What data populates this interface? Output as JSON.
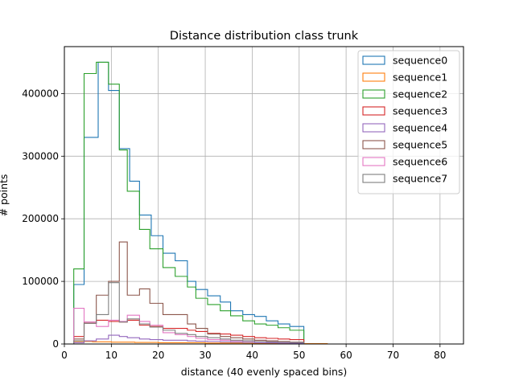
{
  "chart_data": {
    "type": "histogram-step",
    "title": "Distance distribution class trunk",
    "xlabel": "distance (40 evenly spaced bins)",
    "ylabel": "# points",
    "xlim": [
      0,
      85
    ],
    "ylim": [
      0,
      475000
    ],
    "xticks": [
      0,
      10,
      20,
      30,
      40,
      50,
      60,
      70,
      80
    ],
    "xtick_labels": [
      "0",
      "10",
      "20",
      "30",
      "40",
      "50",
      "60",
      "70",
      "80"
    ],
    "yticks": [
      0,
      100000,
      200000,
      300000,
      400000
    ],
    "ytick_labels": [
      "0",
      "100000",
      "200000",
      "300000",
      "400000"
    ],
    "grid": true,
    "legend_position": "top-right",
    "series": [
      {
        "name": "sequence0",
        "color": "#1f77b4",
        "x": [
          2.0,
          4.2,
          7.2,
          9.4,
          11.7,
          13.9,
          16.0,
          18.5,
          21.0,
          23.6,
          26.2,
          28.0,
          30.5,
          33.2,
          35.4,
          38.0,
          40.5,
          43.0,
          45.5,
          48.0,
          51.0
        ],
        "values": [
          95000,
          330000,
          450000,
          405000,
          312000,
          260000,
          206000,
          173000,
          145000,
          133000,
          100000,
          87000,
          77000,
          67000,
          53000,
          47000,
          44000,
          37000,
          32000,
          28000
        ]
      },
      {
        "name": "sequence1",
        "color": "#ff7f0e",
        "x": [
          2.0,
          6.0,
          10.0,
          15.0,
          20.0,
          30.0,
          40.0,
          50.0,
          56.0
        ],
        "values": [
          4000,
          3500,
          3000,
          2500,
          2000,
          1500,
          1000,
          500
        ]
      },
      {
        "name": "sequence2",
        "color": "#2ca02c",
        "x": [
          2.0,
          4.2,
          6.8,
          9.4,
          11.7,
          13.4,
          16.0,
          18.2,
          21.0,
          23.6,
          26.2,
          28.0,
          30.5,
          33.2,
          35.4,
          38.0,
          40.5,
          43.0,
          45.5,
          48.0,
          51.0
        ],
        "values": [
          120000,
          432000,
          450000,
          415000,
          310000,
          244000,
          183000,
          152000,
          122000,
          108000,
          91000,
          73000,
          63000,
          53000,
          45000,
          37000,
          32000,
          30000,
          26000,
          22000
        ]
      },
      {
        "name": "sequence3",
        "color": "#d62728",
        "x": [
          2.0,
          4.2,
          6.8,
          9.4,
          11.7,
          13.4,
          16.0,
          18.2,
          21.0,
          23.6,
          26.2,
          28.0,
          30.5,
          33.2,
          35.4,
          38.0,
          40.5,
          43.0,
          45.5,
          48.0,
          51.0
        ],
        "values": [
          12000,
          33000,
          38000,
          36000,
          35000,
          38000,
          30000,
          28000,
          25000,
          25000,
          22000,
          20000,
          17000,
          16000,
          14000,
          12000,
          10000,
          9000,
          8000,
          7000
        ]
      },
      {
        "name": "sequence4",
        "color": "#9467bd",
        "x": [
          2.0,
          4.2,
          6.8,
          9.4,
          11.7,
          13.4,
          16.0,
          18.2,
          21.0,
          23.6,
          26.2,
          28.0,
          30.5,
          33.2,
          35.4,
          38.0,
          40.5,
          43.0,
          45.5,
          48.0,
          51.0
        ],
        "values": [
          2000,
          5000,
          8000,
          14000,
          12000,
          10000,
          8000,
          7000,
          6000,
          6000,
          5000,
          4500,
          4000,
          3500,
          3000,
          2500,
          2000,
          1800,
          1500,
          1200
        ]
      },
      {
        "name": "sequence5",
        "color": "#8c564b",
        "x": [
          2.0,
          4.2,
          6.8,
          9.4,
          11.7,
          13.4,
          16.0,
          18.2,
          21.0,
          23.6,
          26.2,
          28.0,
          30.5,
          33.2,
          35.4,
          38.0,
          40.5,
          43.0,
          45.5,
          48.0,
          51.0
        ],
        "values": [
          8000,
          35000,
          78000,
          100000,
          163000,
          78000,
          88000,
          65000,
          47000,
          47000,
          32000,
          25000,
          16000,
          12000,
          10000,
          8000,
          6000,
          5000,
          4000,
          3000
        ]
      },
      {
        "name": "sequence6",
        "color": "#e377c2",
        "x": [
          2.0,
          4.2,
          6.8,
          9.4,
          11.7,
          13.4,
          16.0,
          18.2,
          21.0,
          23.6,
          26.2,
          28.0,
          30.5,
          33.2,
          35.4,
          38.0,
          40.5,
          43.0,
          45.5,
          48.0,
          51.0
        ],
        "values": [
          57000,
          35000,
          28000,
          38000,
          36000,
          46000,
          36000,
          30000,
          18000,
          15000,
          12000,
          9000,
          7000,
          6000,
          5000,
          4500,
          4000,
          3500,
          3000,
          2500
        ]
      },
      {
        "name": "sequence7",
        "color": "#7f7f7f",
        "x": [
          2.0,
          4.2,
          6.8,
          9.4,
          11.7,
          13.4,
          16.0,
          18.2,
          21.0,
          23.6,
          26.2,
          28.0,
          30.5,
          33.2,
          35.4,
          38.0,
          40.5,
          43.0,
          45.5,
          48.0,
          51.0
        ],
        "values": [
          5000,
          33000,
          47000,
          98000,
          35000,
          40000,
          32000,
          27000,
          22000,
          17000,
          15000,
          12000,
          10000,
          8000,
          6000,
          5000,
          4000,
          3500,
          3000,
          2500
        ]
      }
    ]
  }
}
